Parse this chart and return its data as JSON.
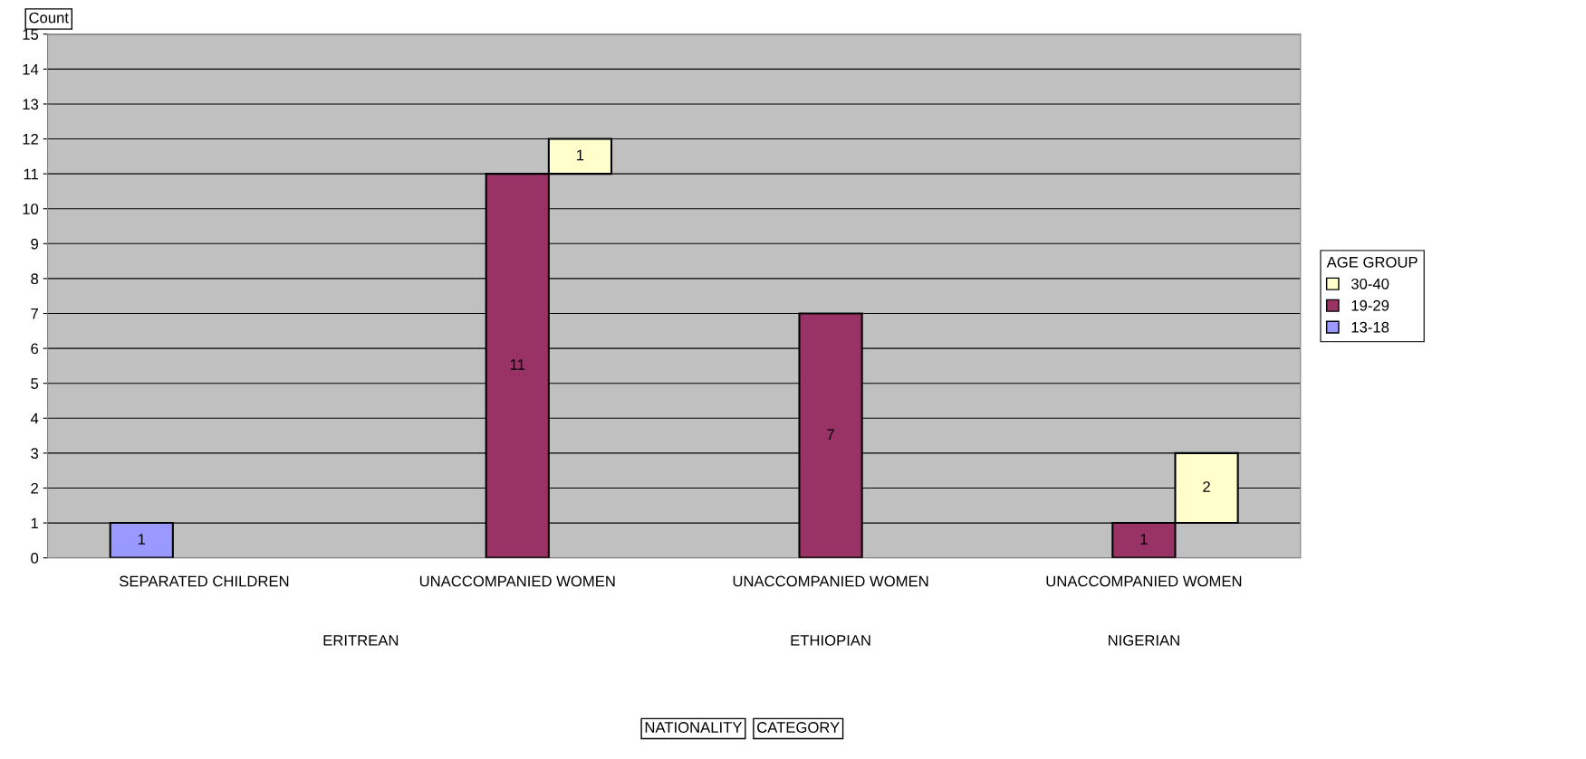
{
  "chart_data": {
    "type": "bar",
    "stacked": true,
    "ylabel": "Count",
    "legend_title": "AGE GROUP",
    "legend": "right",
    "categories": [
      "SEPARATED CHILDREN",
      "UNACCOMPANIED WOMEN",
      "UNACCOMPANIED WOMEN",
      "UNACCOMPANIED WOMEN"
    ],
    "series": [
      {
        "name": "13-18",
        "color": "#9999ff",
        "values": [
          1,
          null,
          null,
          null
        ]
      },
      {
        "name": "19-29",
        "color": "#993366",
        "values": [
          null,
          11,
          7,
          1
        ]
      },
      {
        "name": "30-40",
        "color": "#ffffcc",
        "values": [
          null,
          1,
          null,
          2
        ]
      }
    ],
    "ylim": [
      0,
      15
    ],
    "yticks": [
      0,
      1,
      2,
      3,
      4,
      5,
      6,
      7,
      8,
      9,
      10,
      11,
      12,
      13,
      14,
      15
    ],
    "grid": "y",
    "data_labels": true,
    "annotations": [
      "ERITREAN",
      "ETHIOPIAN",
      "NIGERIAN",
      "NATIONALITY",
      "CATEGORY"
    ]
  }
}
